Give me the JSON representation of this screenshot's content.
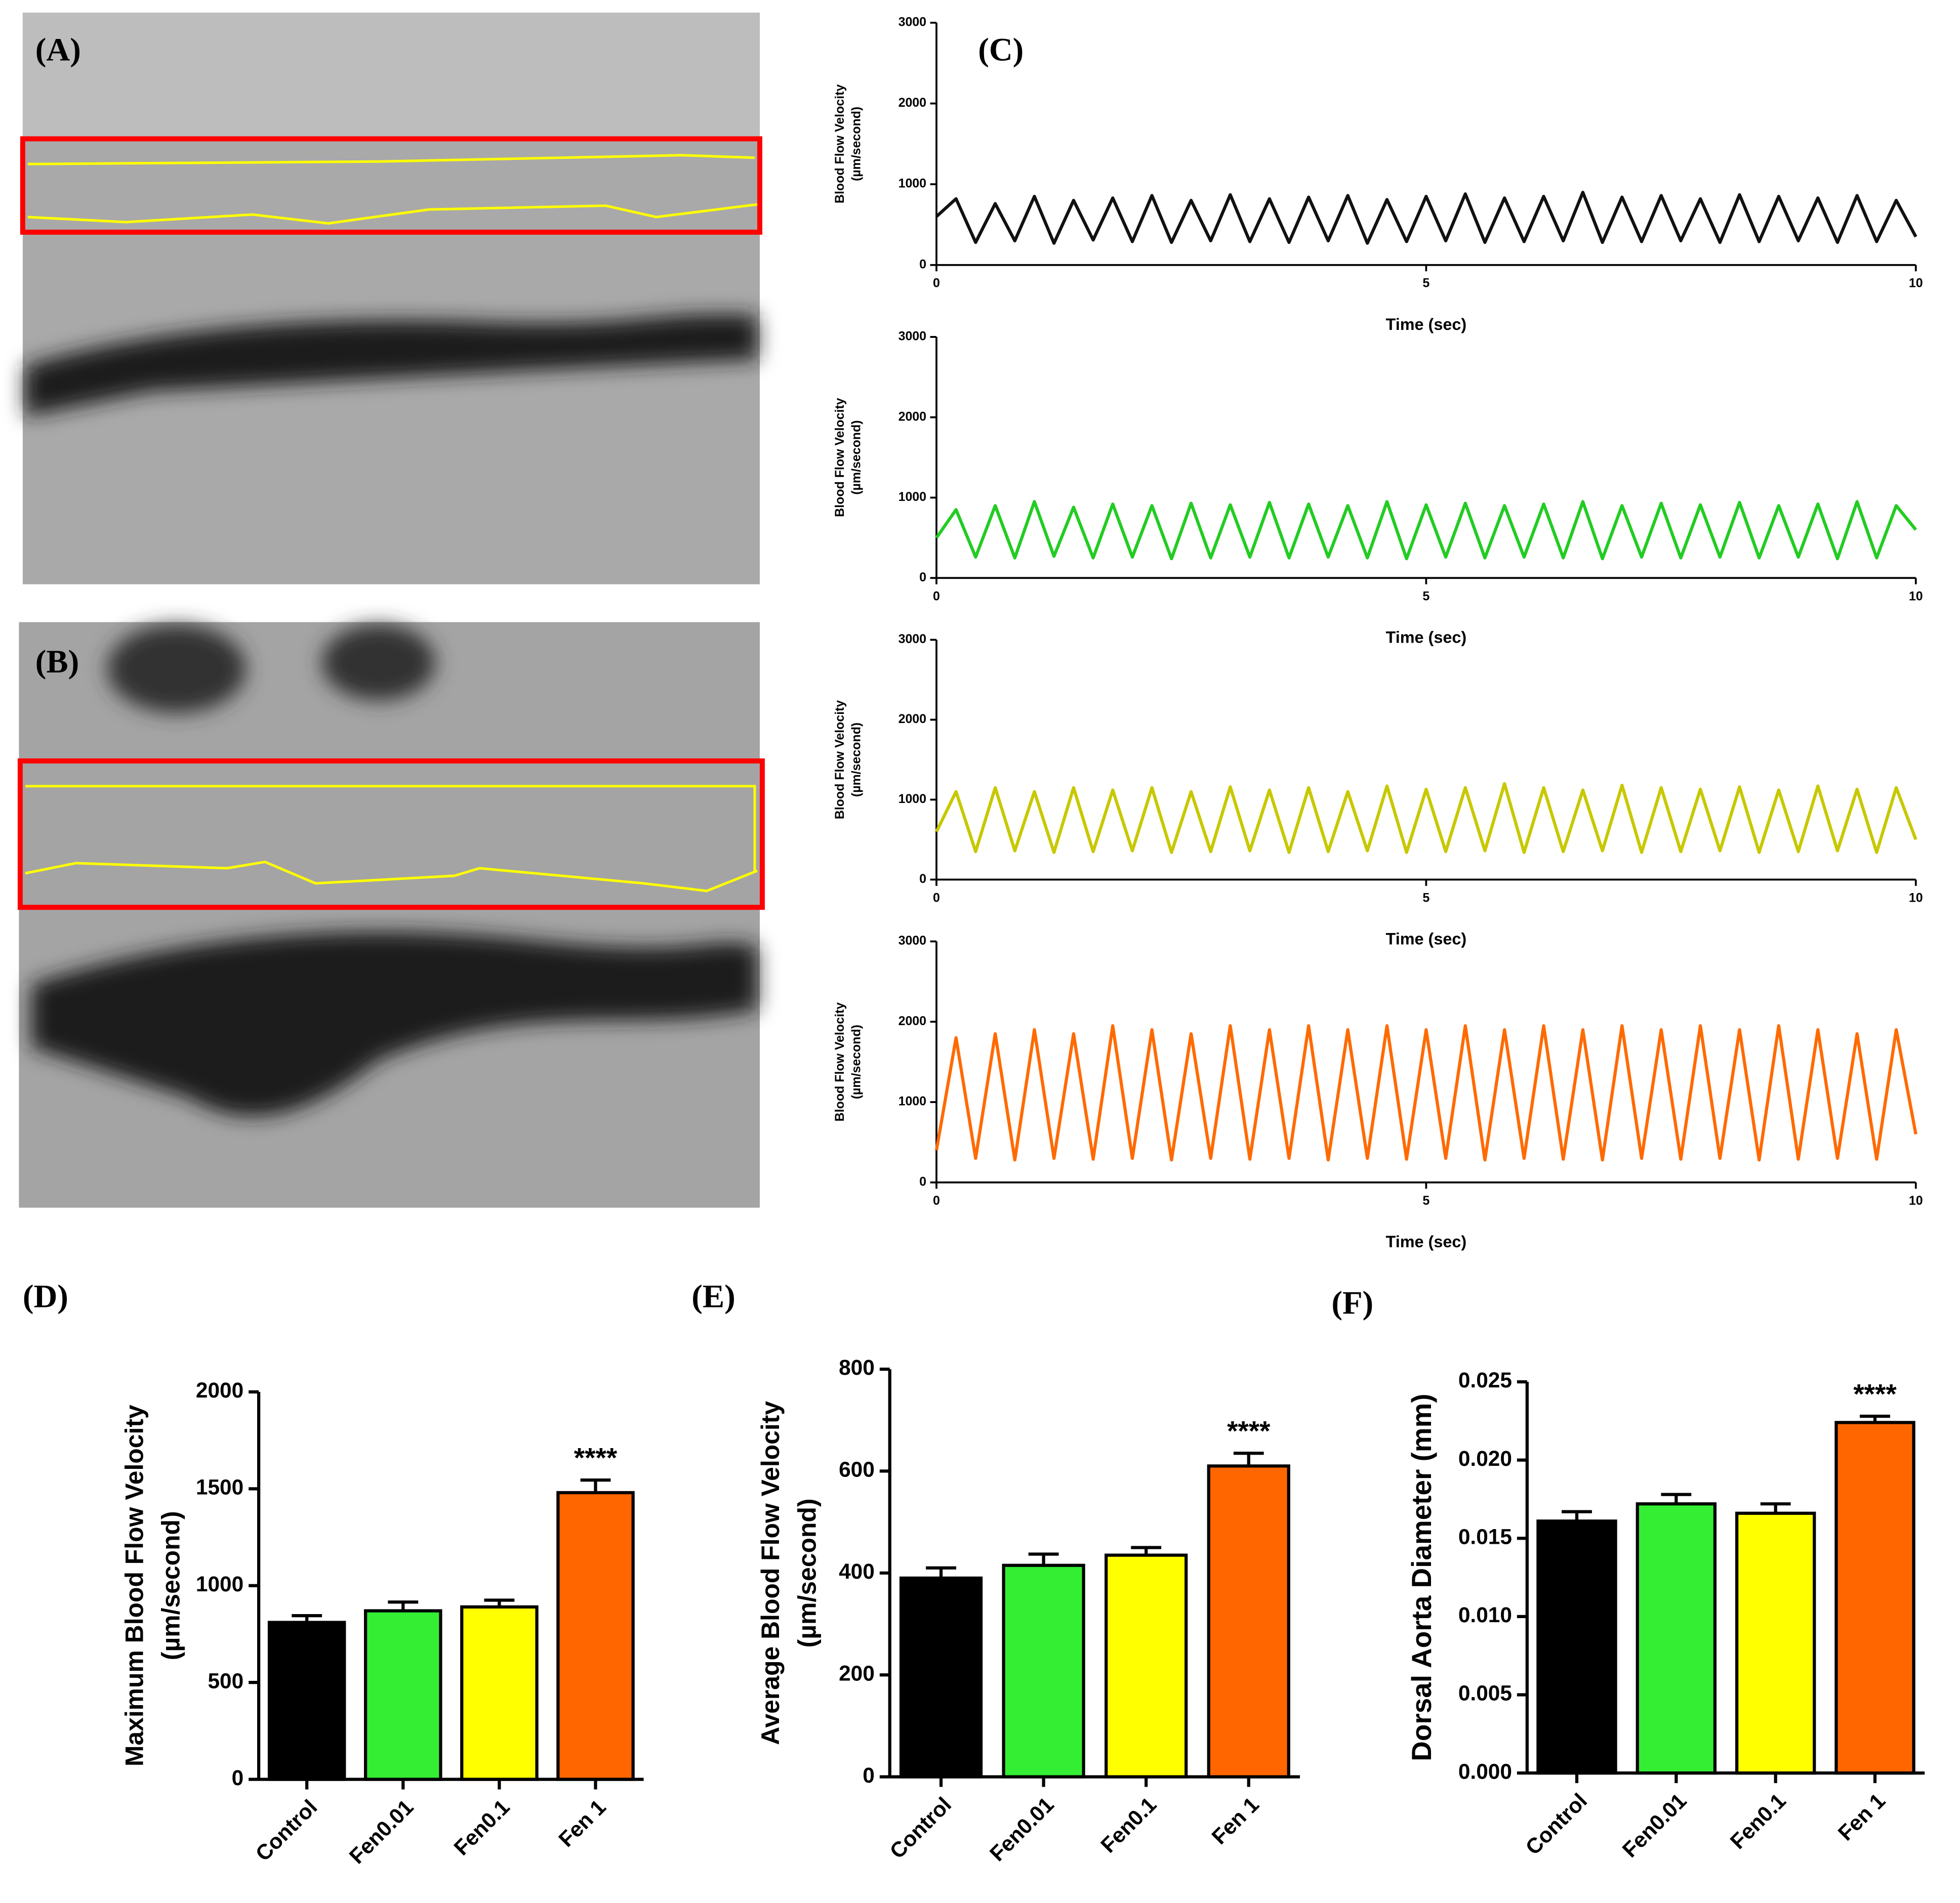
{
  "images": [
    {
      "label": "(A)"
    },
    {
      "label": "(B)"
    }
  ],
  "chart_data": [
    {
      "type": "line",
      "panel_label": "(C)",
      "color": "#111111",
      "y_label": [
        "Blood Flow Velocity",
        "(µm/second)"
      ],
      "x_label": "Time (sec)",
      "xlim": [
        0,
        10
      ],
      "xticks": [
        0,
        5,
        10
      ],
      "ylim": [
        0,
        3000
      ],
      "yticks": [
        0,
        1000,
        2000,
        3000
      ],
      "x": [
        0,
        0.2,
        0.4,
        0.6,
        0.8,
        1,
        1.2,
        1.4,
        1.6,
        1.8,
        2,
        2.2,
        2.4,
        2.6,
        2.8,
        3,
        3.2,
        3.4,
        3.6,
        3.8,
        4,
        4.2,
        4.4,
        4.6,
        4.8,
        5,
        5.2,
        5.4,
        5.6,
        5.8,
        6,
        6.2,
        6.4,
        6.6,
        6.8,
        7,
        7.2,
        7.4,
        7.6,
        7.8,
        8,
        8.2,
        8.4,
        8.6,
        8.8,
        9,
        9.2,
        9.4,
        9.6,
        9.8,
        10
      ],
      "values": [
        600,
        820,
        280,
        760,
        300,
        850,
        270,
        800,
        310,
        830,
        290,
        860,
        280,
        800,
        300,
        870,
        290,
        820,
        280,
        840,
        300,
        860,
        270,
        810,
        290,
        850,
        300,
        880,
        280,
        830,
        290,
        850,
        300,
        900,
        280,
        840,
        290,
        860,
        300,
        820,
        280,
        870,
        290,
        850,
        300,
        830,
        280,
        860,
        290,
        800,
        350
      ]
    },
    {
      "type": "line",
      "color": "#22cc22",
      "y_label": [
        "Blood Flow Velocity",
        "(µm/second)"
      ],
      "x_label": "Time (sec)",
      "xlim": [
        0,
        10
      ],
      "xticks": [
        0,
        5,
        10
      ],
      "ylim": [
        0,
        3000
      ],
      "yticks": [
        0,
        1000,
        2000,
        3000
      ],
      "x": [
        0,
        0.2,
        0.4,
        0.6,
        0.8,
        1,
        1.2,
        1.4,
        1.6,
        1.8,
        2,
        2.2,
        2.4,
        2.6,
        2.8,
        3,
        3.2,
        3.4,
        3.6,
        3.8,
        4,
        4.2,
        4.4,
        4.6,
        4.8,
        5,
        5.2,
        5.4,
        5.6,
        5.8,
        6,
        6.2,
        6.4,
        6.6,
        6.8,
        7,
        7.2,
        7.4,
        7.6,
        7.8,
        8,
        8.2,
        8.4,
        8.6,
        8.8,
        9,
        9.2,
        9.4,
        9.6,
        9.8,
        10
      ],
      "values": [
        500,
        850,
        260,
        900,
        250,
        950,
        270,
        880,
        250,
        920,
        260,
        900,
        240,
        930,
        250,
        910,
        260,
        940,
        250,
        920,
        260,
        900,
        250,
        950,
        240,
        910,
        260,
        930,
        250,
        900,
        260,
        920,
        250,
        950,
        240,
        900,
        260,
        930,
        250,
        910,
        260,
        940,
        250,
        900,
        260,
        920,
        240,
        950,
        250,
        900,
        600
      ]
    },
    {
      "type": "line",
      "color": "#c8c800",
      "y_label": [
        "Blood Flow Velocity",
        "(µm/second)"
      ],
      "x_label": "Time (sec)",
      "xlim": [
        0,
        10
      ],
      "xticks": [
        0,
        5,
        10
      ],
      "ylim": [
        0,
        3000
      ],
      "yticks": [
        0,
        1000,
        2000,
        3000
      ],
      "x": [
        0,
        0.2,
        0.4,
        0.6,
        0.8,
        1,
        1.2,
        1.4,
        1.6,
        1.8,
        2,
        2.2,
        2.4,
        2.6,
        2.8,
        3,
        3.2,
        3.4,
        3.6,
        3.8,
        4,
        4.2,
        4.4,
        4.6,
        4.8,
        5,
        5.2,
        5.4,
        5.6,
        5.8,
        6,
        6.2,
        6.4,
        6.6,
        6.8,
        7,
        7.2,
        7.4,
        7.6,
        7.8,
        8,
        8.2,
        8.4,
        8.6,
        8.8,
        9,
        9.2,
        9.4,
        9.6,
        9.8,
        10
      ],
      "values": [
        600,
        1100,
        350,
        1150,
        360,
        1100,
        340,
        1150,
        350,
        1120,
        360,
        1150,
        340,
        1100,
        350,
        1160,
        360,
        1120,
        340,
        1150,
        350,
        1100,
        360,
        1170,
        340,
        1130,
        350,
        1150,
        360,
        1200,
        340,
        1150,
        350,
        1120,
        360,
        1180,
        340,
        1150,
        350,
        1130,
        360,
        1160,
        340,
        1120,
        350,
        1170,
        360,
        1130,
        340,
        1150,
        500
      ]
    },
    {
      "type": "line",
      "color": "#ff6a00",
      "y_label": [
        "Blood Flow Velocity",
        "(µm/second)"
      ],
      "x_label": "Time (sec)",
      "xlim": [
        0,
        10
      ],
      "xticks": [
        0,
        5,
        10
      ],
      "ylim": [
        0,
        3000
      ],
      "yticks": [
        0,
        1000,
        2000,
        3000
      ],
      "x": [
        0,
        0.2,
        0.4,
        0.6,
        0.8,
        1,
        1.2,
        1.4,
        1.6,
        1.8,
        2,
        2.2,
        2.4,
        2.6,
        2.8,
        3,
        3.2,
        3.4,
        3.6,
        3.8,
        4,
        4.2,
        4.4,
        4.6,
        4.8,
        5,
        5.2,
        5.4,
        5.6,
        5.8,
        6,
        6.2,
        6.4,
        6.6,
        6.8,
        7,
        7.2,
        7.4,
        7.6,
        7.8,
        8,
        8.2,
        8.4,
        8.6,
        8.8,
        9,
        9.2,
        9.4,
        9.6,
        9.8,
        10
      ],
      "values": [
        400,
        1800,
        300,
        1850,
        280,
        1900,
        300,
        1850,
        290,
        1950,
        300,
        1900,
        280,
        1850,
        300,
        1950,
        290,
        1900,
        300,
        1950,
        280,
        1900,
        300,
        1950,
        290,
        1900,
        300,
        1950,
        280,
        1900,
        300,
        1950,
        290,
        1900,
        280,
        1950,
        300,
        1900,
        290,
        1950,
        300,
        1900,
        280,
        1950,
        290,
        1900,
        300,
        1850,
        290,
        1900,
        600
      ]
    },
    {
      "type": "bar",
      "panel_label": "(D)",
      "y_label": [
        "Maximum Blood Flow Velocity",
        "(µm/second)"
      ],
      "categories": [
        "Control",
        "Fen0.01",
        "Fen0.1",
        "Fen 1"
      ],
      "values": [
        810,
        870,
        890,
        1480
      ],
      "errors": [
        35,
        45,
        35,
        65
      ],
      "colors": [
        "#000000",
        "#33ee33",
        "#ffff00",
        "#ff6600"
      ],
      "significance": [
        null,
        null,
        null,
        "****"
      ],
      "ylim": [
        0,
        2000
      ],
      "yticks": [
        0,
        500,
        1000,
        1500,
        2000
      ]
    },
    {
      "type": "bar",
      "panel_label": "(E)",
      "y_label": [
        "Average Blood Flow Velocity",
        "(µm/second)"
      ],
      "categories": [
        "Control",
        "Fen0.01",
        "Fen0.1",
        "Fen 1"
      ],
      "values": [
        390,
        415,
        435,
        610
      ],
      "errors": [
        20,
        22,
        15,
        25
      ],
      "colors": [
        "#000000",
        "#33ee33",
        "#ffff00",
        "#ff6600"
      ],
      "significance": [
        null,
        null,
        null,
        "****"
      ],
      "ylim": [
        0,
        800
      ],
      "yticks": [
        0,
        200,
        400,
        600,
        800
      ]
    },
    {
      "type": "bar",
      "panel_label": "(F)",
      "y_label": [
        "Dorsal Aorta Diameter (mm)"
      ],
      "categories": [
        "Control",
        "Fen0.01",
        "Fen0.1",
        "Fen 1"
      ],
      "values": [
        0.0161,
        0.0172,
        0.0166,
        0.0224
      ],
      "errors": [
        0.0006,
        0.0006,
        0.0006,
        0.0004
      ],
      "colors": [
        "#000000",
        "#33ee33",
        "#ffff00",
        "#ff6600"
      ],
      "significance": [
        null,
        null,
        null,
        "****"
      ],
      "ylim": [
        0,
        0.025
      ],
      "yticks": [
        {
          "value": 0,
          "label": "0.000"
        },
        {
          "value": 0.005,
          "label": "0.005"
        },
        {
          "value": 0.01,
          "label": "0.010"
        },
        {
          "value": 0.015,
          "label": "0.015"
        },
        {
          "value": 0.02,
          "label": "0.020"
        },
        {
          "value": 0.025,
          "label": "0.025"
        }
      ]
    }
  ]
}
